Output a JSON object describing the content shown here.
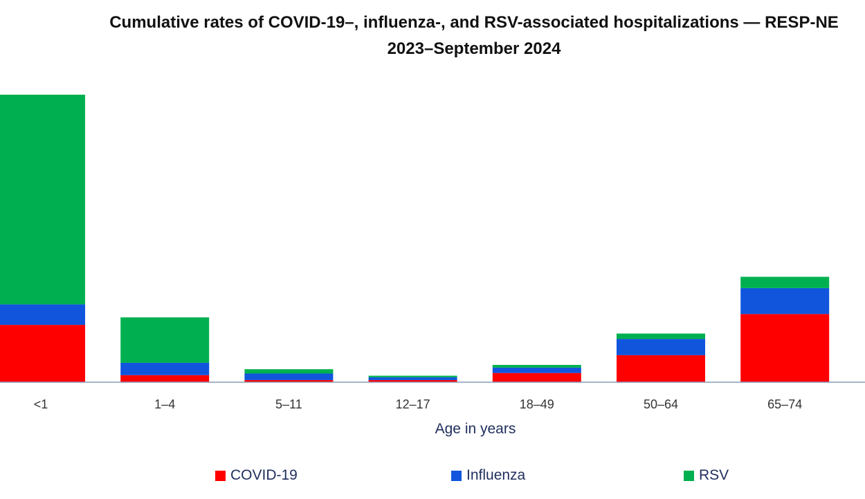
{
  "chart_data": {
    "type": "bar",
    "stacked": true,
    "title_line1": "Cumulative rates of COVID-19–, influenza-, and RSV-associated hospitalizations — RESP-NE",
    "title_line2": "2023–September 2024",
    "xlabel": "Age in years",
    "ylabel": "",
    "categories": [
      "<1",
      "1–4",
      "5–11",
      "12–17",
      "18–49",
      "50–64",
      "65–74"
    ],
    "series": [
      {
        "name": "COVID-19",
        "color": "#ff0000",
        "values": [
          530,
          65,
          20,
          20,
          85,
          250,
          630
        ]
      },
      {
        "name": "Influenza",
        "color": "#1155dd",
        "values": [
          190,
          115,
          60,
          25,
          50,
          150,
          240
        ]
      },
      {
        "name": "RSV",
        "color": "#00b050",
        "values": [
          1940,
          420,
          40,
          15,
          25,
          50,
          105
        ]
      }
    ],
    "ylim": [
      0,
      2660
    ],
    "grid": false,
    "legend_position": "bottom"
  }
}
